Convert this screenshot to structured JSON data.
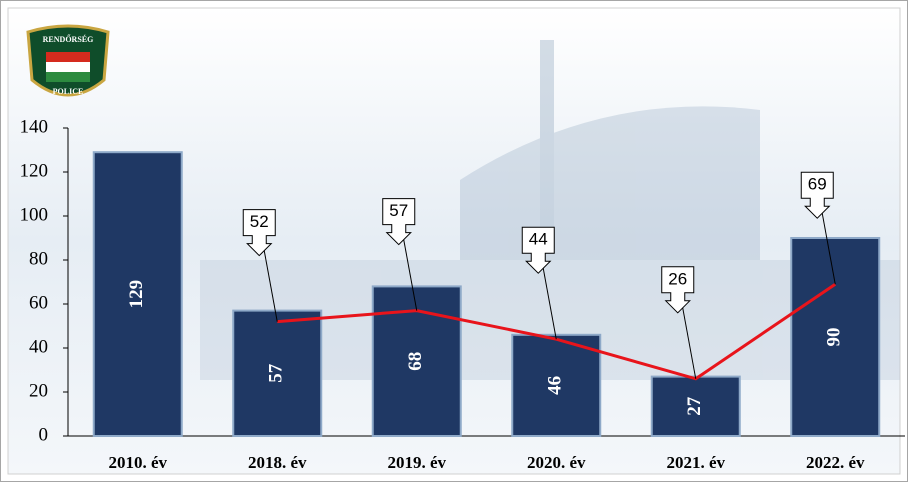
{
  "chart_data": {
    "type": "bar",
    "categories": [
      "2010. év",
      "2018. év",
      "2019. év",
      "2020. év",
      "2021. év",
      "2022. év"
    ],
    "series": [
      {
        "type": "bar",
        "color": "#1f3864",
        "values": [
          129,
          57,
          68,
          46,
          27,
          90
        ]
      },
      {
        "type": "line",
        "color": "#e8141b",
        "values": [
          null,
          52,
          57,
          44,
          26,
          69
        ]
      }
    ],
    "ylim": [
      0,
      140
    ],
    "yticks": [
      0,
      20,
      40,
      60,
      80,
      100,
      120,
      140
    ]
  },
  "logo": {
    "top": "RENDŐRSÉG",
    "bottom": "POLICE"
  }
}
